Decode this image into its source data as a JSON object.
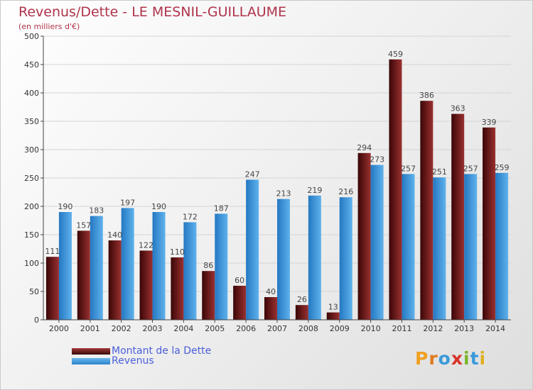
{
  "chart_data": {
    "type": "bar",
    "title": "Revenus/Dette - LE MESNIL-GUILLAUME",
    "subtitle": "(en milliers d'€)",
    "categories": [
      "2000",
      "2001",
      "2002",
      "2003",
      "2004",
      "2005",
      "2006",
      "2007",
      "2008",
      "2009",
      "2010",
      "2011",
      "2012",
      "2013",
      "2014"
    ],
    "series": [
      {
        "name": "Montant de la Dette",
        "color": "#7a1a1a",
        "values": [
          111,
          157,
          140,
          122,
          110,
          86,
          60,
          40,
          26,
          13,
          294,
          459,
          386,
          363,
          339
        ]
      },
      {
        "name": "Revenus",
        "color": "#3d9be0",
        "values": [
          190,
          183,
          197,
          190,
          172,
          187,
          247,
          213,
          219,
          216,
          273,
          257,
          251,
          257,
          259
        ]
      }
    ],
    "ylim": [
      0,
      500
    ],
    "yticks": [
      0,
      50,
      100,
      150,
      200,
      250,
      300,
      350,
      400,
      450,
      500
    ],
    "xlabel": "",
    "ylabel": "",
    "grid": true,
    "legend_position": "bottom-left"
  },
  "logo": {
    "text": "Proxiti",
    "letter_colors": [
      "#f0a020",
      "#e07a20",
      "#3a9ad9",
      "#d9332a",
      "#7ab52a",
      "#3a9ad9",
      "#e0b020"
    ]
  }
}
